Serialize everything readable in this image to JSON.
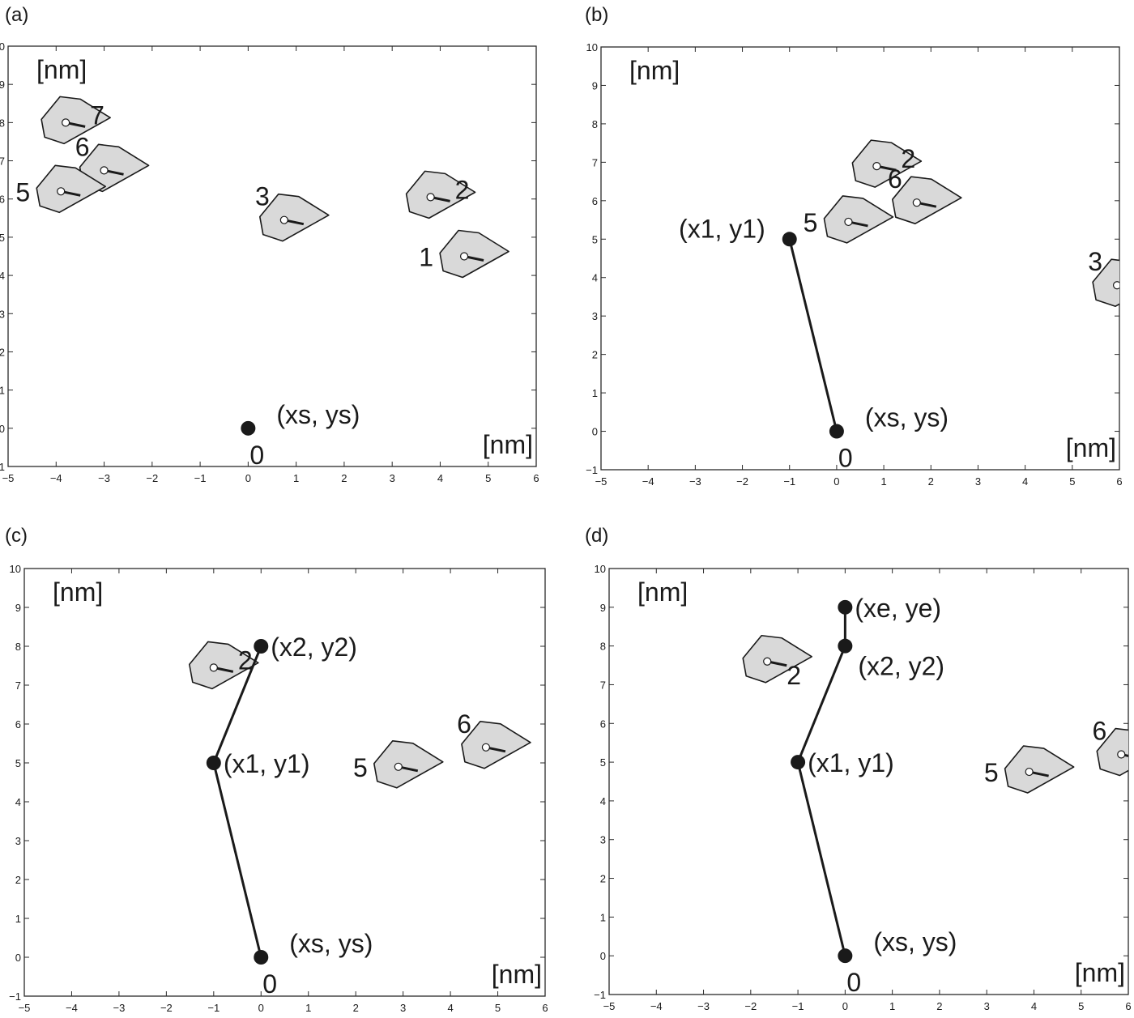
{
  "colors": {
    "frame": "#2a2a2a",
    "molecule_fill": "#d9d9d9",
    "ink": "#1a1a1a"
  },
  "chart_data": [
    {
      "panel_label": "(a)",
      "type": "scatter",
      "xlim": [
        -5,
        6
      ],
      "ylim": [
        -1,
        10
      ],
      "x_ticks": [
        "-5",
        "-4",
        "-3",
        "-2",
        "-1",
        "0",
        "1",
        "2",
        "3",
        "4",
        "5",
        "6"
      ],
      "y_ticks": [
        "-1",
        "0",
        "1",
        "2",
        "3",
        "4",
        "5",
        "6",
        "7",
        "8",
        "9",
        "10"
      ],
      "ylabel": "[nm]",
      "xlabel": "[nm]",
      "grid": false,
      "molecules": [
        {
          "label": "7",
          "x": -3.8,
          "y": 8.0,
          "label_side": "right"
        },
        {
          "label": "6",
          "x": -3.0,
          "y": 6.75,
          "label_side": "above-left"
        },
        {
          "label": "5",
          "x": -3.9,
          "y": 6.2,
          "label_side": "left"
        },
        {
          "label": "3",
          "x": 0.75,
          "y": 5.45,
          "label_side": "above-left"
        },
        {
          "label": "2",
          "x": 3.8,
          "y": 6.05,
          "label_side": "right"
        },
        {
          "label": "1",
          "x": 4.5,
          "y": 4.5,
          "label_side": "left"
        }
      ],
      "path": [
        {
          "label": "(xs, ys)",
          "x": 0,
          "y": 0,
          "label_side": "right"
        }
      ],
      "start_index_label": "0"
    },
    {
      "panel_label": "(b)",
      "type": "scatter",
      "xlim": [
        -5,
        6
      ],
      "ylim": [
        -1,
        10
      ],
      "x_ticks": [
        "-5",
        "-4",
        "-3",
        "-2",
        "-1",
        "0",
        "1",
        "2",
        "3",
        "4",
        "5",
        "6"
      ],
      "y_ticks": [
        "-1",
        "0",
        "1",
        "2",
        "3",
        "4",
        "5",
        "6",
        "7",
        "8",
        "9",
        "10"
      ],
      "ylabel": "[nm]",
      "xlabel": "[nm]",
      "grid": false,
      "molecules": [
        {
          "label": "2",
          "x": 0.85,
          "y": 6.9,
          "label_side": "right"
        },
        {
          "label": "6",
          "x": 1.7,
          "y": 5.95,
          "label_side": "above-left"
        },
        {
          "label": "5",
          "x": 0.25,
          "y": 5.45,
          "label_side": "left"
        },
        {
          "label": "3",
          "x": 5.95,
          "y": 3.8,
          "label_side": "above-left"
        }
      ],
      "path": [
        {
          "label": "(xs, ys)",
          "x": 0,
          "y": 0,
          "label_side": "right"
        },
        {
          "label": "(x1, y1)",
          "x": -1,
          "y": 5,
          "label_side": "left"
        }
      ],
      "start_index_label": "0"
    },
    {
      "panel_label": "(c)",
      "type": "scatter",
      "xlim": [
        -5,
        6
      ],
      "ylim": [
        -1,
        10
      ],
      "x_ticks": [
        "-5",
        "-4",
        "-3",
        "-2",
        "-1",
        "0",
        "1",
        "2",
        "3",
        "4",
        "5",
        "6"
      ],
      "y_ticks": [
        "-1",
        "0",
        "1",
        "2",
        "3",
        "4",
        "5",
        "6",
        "7",
        "8",
        "9",
        "10"
      ],
      "ylabel": "[nm]",
      "xlabel": "[nm]",
      "grid": false,
      "molecules": [
        {
          "label": "2",
          "x": -1.0,
          "y": 7.45,
          "label_side": "right"
        },
        {
          "label": "5",
          "x": 2.9,
          "y": 4.9,
          "label_side": "left"
        },
        {
          "label": "6",
          "x": 4.75,
          "y": 5.4,
          "label_side": "above-left"
        }
      ],
      "path": [
        {
          "label": "(xs, ys)",
          "x": 0,
          "y": 0,
          "label_side": "right"
        },
        {
          "label": "(x1, y1)",
          "x": -1,
          "y": 5,
          "label_side": "right"
        },
        {
          "label": "(x2, y2)",
          "x": 0,
          "y": 8,
          "label_side": "right"
        }
      ],
      "start_index_label": "0"
    },
    {
      "panel_label": "(d)",
      "type": "scatter",
      "xlim": [
        -5,
        6
      ],
      "ylim": [
        -1,
        10
      ],
      "x_ticks": [
        "-5",
        "-4",
        "-3",
        "-2",
        "-1",
        "0",
        "1",
        "2",
        "3",
        "4",
        "5",
        "6"
      ],
      "y_ticks": [
        "-1",
        "0",
        "1",
        "2",
        "3",
        "4",
        "5",
        "6",
        "7",
        "8",
        "9",
        "10"
      ],
      "ylabel": "[nm]",
      "xlabel": "[nm]",
      "grid": false,
      "molecules": [
        {
          "label": "2",
          "x": -1.65,
          "y": 7.6,
          "label_side": "below-right"
        },
        {
          "label": "5",
          "x": 3.9,
          "y": 4.75,
          "label_side": "left"
        },
        {
          "label": "6",
          "x": 5.85,
          "y": 5.2,
          "label_side": "above-left"
        }
      ],
      "path": [
        {
          "label": "(xs, ys)",
          "x": 0,
          "y": 0,
          "label_side": "right"
        },
        {
          "label": "(x1, y1)",
          "x": -1,
          "y": 5,
          "label_side": "right"
        },
        {
          "label": "(x2, y2)",
          "x": 0,
          "y": 8,
          "label_side": "below-right"
        },
        {
          "label": "(xe, ye)",
          "x": 0,
          "y": 9,
          "label_side": "right"
        }
      ],
      "start_index_label": "0"
    }
  ]
}
